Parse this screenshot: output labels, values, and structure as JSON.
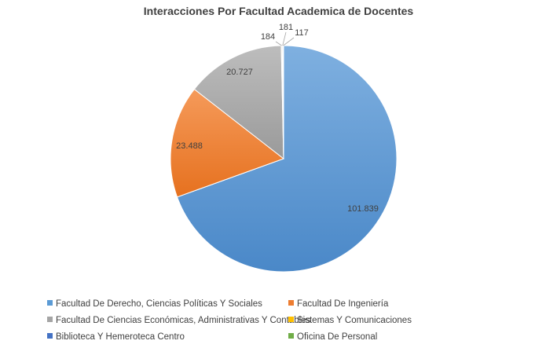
{
  "chart_data": {
    "type": "pie",
    "title": "Interacciones Por Facultad Academica de Docentes",
    "slices": [
      {
        "label": "Facultad De Derecho, Ciencias Políticas Y Sociales",
        "value": 101839,
        "display": "101.839",
        "color": "#5b9bd5"
      },
      {
        "label": "Facultad De Ingeniería",
        "value": 23488,
        "display": "23.488",
        "color": "#ed7d31"
      },
      {
        "label": "Facultad De Ciencias Económicas, Administrativas Y Contables",
        "value": 20727,
        "display": "20.727",
        "color": "#a5a5a5"
      },
      {
        "label": "Sistemas Y Comunicaciones",
        "value": 184,
        "display": "184",
        "color": "#ffc000"
      },
      {
        "label": "Biblioteca Y Hemeroteca Centro",
        "value": 181,
        "display": "181",
        "color": "#4472c4"
      },
      {
        "label": "Oficina De Personal",
        "value": 117,
        "display": "117",
        "color": "#70ad47"
      }
    ],
    "legend_position": "bottom"
  }
}
